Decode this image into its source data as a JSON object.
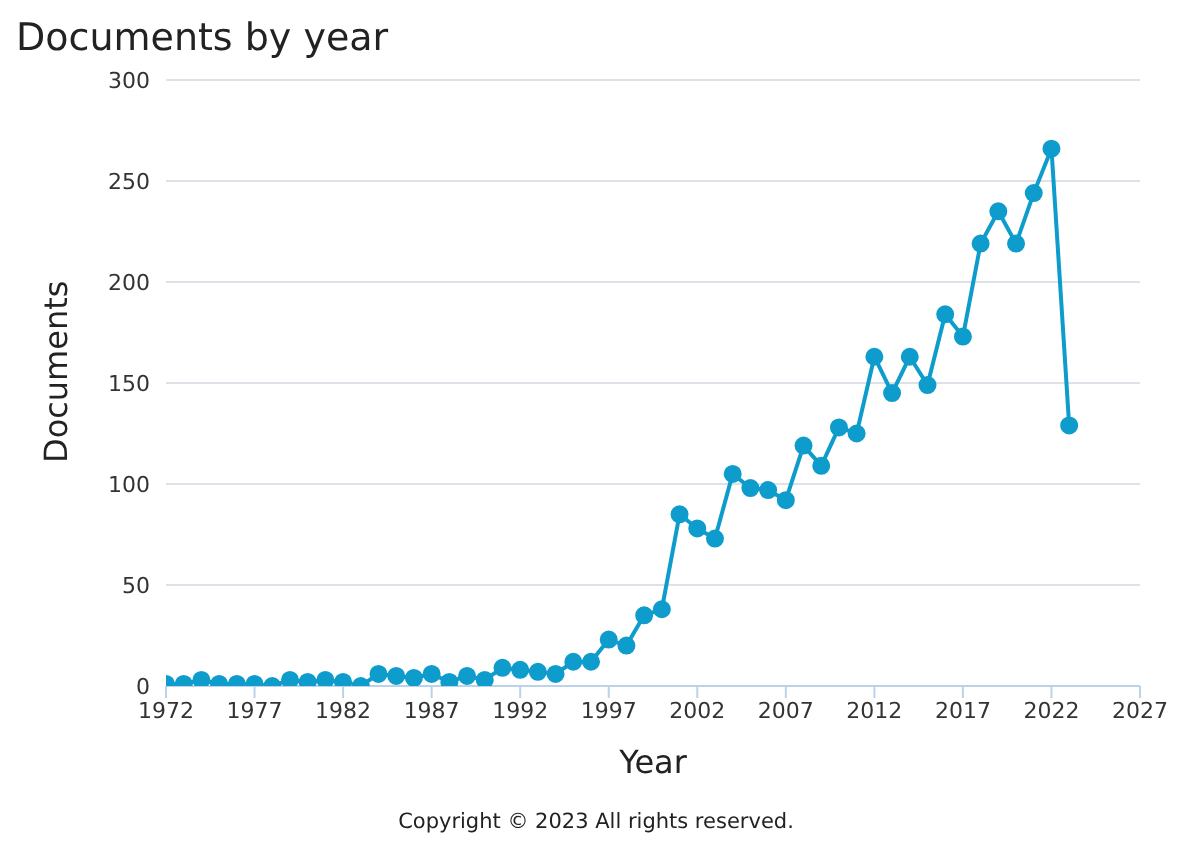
{
  "chart_data": {
    "type": "line",
    "title": "Documents by year",
    "xlabel": "Year",
    "ylabel": "Documents",
    "x": [
      1972,
      1973,
      1974,
      1975,
      1976,
      1977,
      1978,
      1979,
      1980,
      1981,
      1982,
      1983,
      1984,
      1985,
      1986,
      1987,
      1988,
      1989,
      1990,
      1991,
      1992,
      1993,
      1994,
      1995,
      1996,
      1997,
      1998,
      1999,
      2000,
      2001,
      2002,
      2003,
      2004,
      2005,
      2006,
      2007,
      2008,
      2009,
      2010,
      2011,
      2012,
      2013,
      2014,
      2015,
      2016,
      2017,
      2018,
      2019,
      2020,
      2021,
      2022,
      2023
    ],
    "series": [
      {
        "color": "#0e9ccc",
        "values": [
          1,
          1,
          3,
          1,
          1,
          1,
          0,
          3,
          2,
          3,
          2,
          0,
          6,
          5,
          4,
          6,
          2,
          5,
          3,
          9,
          8,
          7,
          6,
          12,
          12,
          23,
          20,
          35,
          38,
          85,
          78,
          73,
          105,
          98,
          97,
          92,
          119,
          109,
          128,
          125,
          163,
          145,
          163,
          149,
          184,
          173,
          219,
          235,
          219,
          244,
          266,
          129
        ]
      }
    ],
    "xlim": [
      1972,
      2027
    ],
    "xticks": [
      1972,
      1977,
      1982,
      1987,
      1992,
      1997,
      2002,
      2007,
      2012,
      2017,
      2022,
      2027
    ],
    "ylim": [
      0,
      300
    ],
    "yticks": [
      0,
      50,
      100,
      150,
      200,
      250,
      300
    ],
    "grid": "y",
    "marker": "circle",
    "line_style": "solid",
    "annotations": [
      "Copyright © 2023 All rights reserved."
    ]
  }
}
